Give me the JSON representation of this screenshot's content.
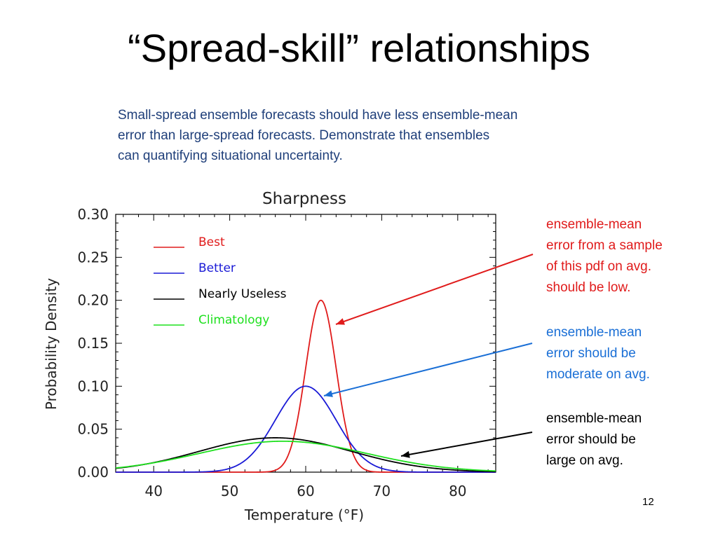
{
  "slide": {
    "title": "“Spread-skill” relationships",
    "subtitle_lines": [
      "Small-spread ensemble forecasts should have less ensemble-mean",
      "error than large-spread forecasts. Demonstrate that ensembles",
      "can quantifying situational uncertainty."
    ],
    "page_number": "12"
  },
  "annotations": [
    {
      "id": "best",
      "color": "#e01b1b",
      "lines": [
        "ensemble-mean",
        "error from a sample",
        "of this pdf on avg.",
        "should be low."
      ]
    },
    {
      "id": "better",
      "color": "#1a6fd6",
      "lines": [
        "ensemble-mean",
        "error should be",
        "moderate on avg."
      ]
    },
    {
      "id": "useless",
      "color": "#000000",
      "lines": [
        "ensemble-mean",
        "error should be",
        "large on avg."
      ]
    }
  ],
  "chart_data": {
    "type": "line",
    "title": "Sharpness",
    "xlabel": "Temperature (°F)",
    "ylabel": "Probability Density",
    "xlim": [
      35,
      85
    ],
    "ylim": [
      0.0,
      0.3
    ],
    "x_ticks": [
      "40",
      "50",
      "60",
      "70",
      "80"
    ],
    "y_ticks": [
      "0.00",
      "0.05",
      "0.10",
      "0.15",
      "0.20",
      "0.25",
      "0.30"
    ],
    "legend_position": "top-left",
    "series": [
      {
        "name": "Best",
        "color": "#e01b1b",
        "distribution": "normal",
        "mean": 62,
        "sd": 2.0,
        "peak": 0.2
      },
      {
        "name": "Better",
        "color": "#1a1ad6",
        "distribution": "normal",
        "mean": 60,
        "sd": 4.0,
        "peak": 0.1
      },
      {
        "name": "Nearly Useless",
        "color": "#000000",
        "distribution": "normal",
        "mean": 56,
        "sd": 10.0,
        "peak": 0.04
      },
      {
        "name": "Climatology",
        "color": "#1ee01e",
        "distribution": "normal",
        "mean": 57,
        "sd": 11.0,
        "peak": 0.036
      }
    ]
  }
}
